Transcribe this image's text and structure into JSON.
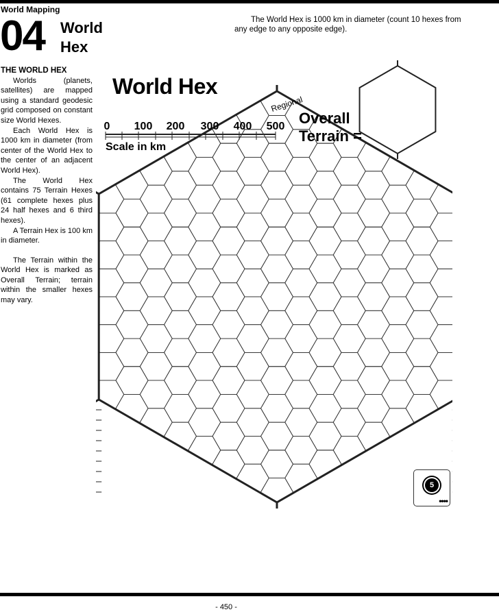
{
  "header": {
    "running_head": "World Mapping",
    "chapter_number": "04",
    "chapter_title_line1": "World",
    "chapter_title_line2": "Hex",
    "intro": "The World Hex is 1000 km in diameter (count 10 hexes from any edge to any opposite edge)."
  },
  "sidebar": {
    "heading": "THE WORLD HEX",
    "paragraphs": [
      "Worlds (planets, satellites) are mapped using a standard geodesic grid composed on constant size World Hexes.",
      "Each World Hex is 1000 km in diameter (from center of the World Hex to the center of an adjacent World Hex).",
      "The World Hex contains 75 Terrain Hexes (61 complete hexes plus 24 half hexes and 6 third hexes).",
      "A Terrain Hex is 100 km in diameter."
    ],
    "paragraph_after_gap": "The Terrain within the World Hex is marked as Overall Terrain; terrain within the smaller hexes may vary."
  },
  "figure": {
    "title": "World Hex",
    "scale_ticks": [
      "0",
      "100",
      "200",
      "300",
      "400",
      "500"
    ],
    "scale_label": "Scale in km",
    "regional_label": "Regional",
    "overall_line1": "Overall",
    "overall_line2": "Terrain ="
  },
  "badge": {
    "number": "5",
    "dots": "••••"
  },
  "footer": {
    "page_number": "- 450 -"
  }
}
